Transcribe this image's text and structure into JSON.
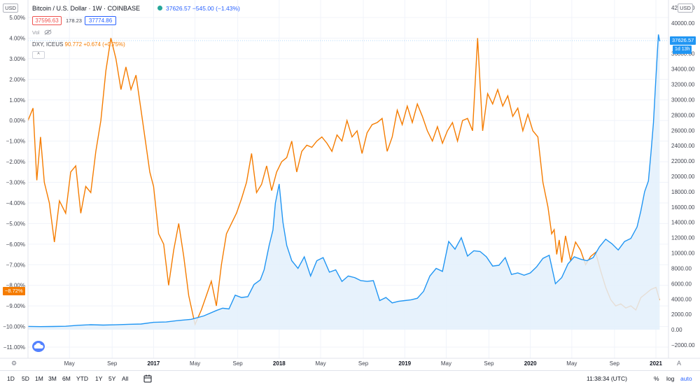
{
  "header": {
    "usd_left": "USD",
    "usd_right": "USD",
    "title": "Bitcoin / U.S. Dollar · 1W · COINBASE",
    "title_price": "37626.57  −545.00 (−1.43%)",
    "bid": "37596.63",
    "spread": "178.23",
    "ask": "37774.86",
    "vol_label": "Vol",
    "dxy_legend_name": "DXY, ICEUS",
    "dxy_legend_values": "90.772  +0.674 (+0.75%)",
    "collapse_label": "^"
  },
  "tags": {
    "btc_price": "37626.57",
    "countdown": "1d 13h",
    "dxy_pct": "−8.72%"
  },
  "bottom_bar": {
    "timeframes": [
      "1D",
      "5D",
      "1M",
      "3M",
      "6M",
      "YTD",
      "1Y",
      "5Y",
      "All"
    ],
    "clock": "11:38:34 (UTC)",
    "percent": "%",
    "log": "log",
    "auto": "auto"
  },
  "colors": {
    "btc_line": "#2196f3",
    "btc_fill": "#e3f0fb",
    "dxy_line": "#f57c00",
    "grid": "#f0f3fa",
    "bid_red": "#ef5350"
  },
  "chart_data": {
    "type": "line",
    "left_axis": {
      "unit": "percent",
      "ylim": [
        -11,
        5
      ],
      "ticks": [
        "5.00%",
        "4.00%",
        "3.00%",
        "2.00%",
        "1.00%",
        "0.00%",
        "−1.00%",
        "−2.00%",
        "−3.00%",
        "−4.00%",
        "−5.00%",
        "−6.00%",
        "−7.00%",
        "−8.00%",
        "−9.00%",
        "−10.00%",
        "−11.00%"
      ]
    },
    "right_axis": {
      "unit": "USD",
      "ylim": [
        -2000,
        42000
      ],
      "ticks": [
        "42000.00",
        "40000.00",
        "38000.00",
        "36000.00",
        "34000.00",
        "32000.00",
        "30000.00",
        "28000.00",
        "26000.00",
        "24000.00",
        "22000.00",
        "20000.00",
        "18000.00",
        "16000.00",
        "14000.00",
        "12000.00",
        "10000.00",
        "8000.00",
        "6000.00",
        "4000.00",
        "2000.00",
        "0.00",
        "−2000.00"
      ]
    },
    "x_axis": {
      "labels": [
        "May",
        "Sep",
        "2017",
        "May",
        "Sep",
        "2018",
        "May",
        "Sep",
        "2019",
        "May",
        "Sep",
        "2020",
        "May",
        "Sep",
        "2021"
      ],
      "label_dates": [
        2016.33,
        2016.67,
        2017.0,
        2017.33,
        2017.67,
        2018.0,
        2018.33,
        2018.67,
        2019.0,
        2019.33,
        2019.67,
        2020.0,
        2020.33,
        2020.67,
        2021.0
      ],
      "year_labels": [
        "2017",
        "2018",
        "2019",
        "2020",
        "2021"
      ],
      "range": [
        2016.0,
        2021.1
      ]
    },
    "grid": true,
    "series": [
      {
        "name": "DXY, ICEUS",
        "axis": "left",
        "color": "#f57c00",
        "x": [
          2016.0,
          2016.04,
          2016.07,
          2016.1,
          2016.13,
          2016.17,
          2016.21,
          2016.25,
          2016.3,
          2016.34,
          2016.38,
          2016.42,
          2016.46,
          2016.5,
          2016.54,
          2016.58,
          2016.62,
          2016.66,
          2016.7,
          2016.74,
          2016.78,
          2016.82,
          2016.86,
          2016.9,
          2016.94,
          2016.97,
          2017.0,
          2017.04,
          2017.08,
          2017.12,
          2017.16,
          2017.2,
          2017.24,
          2017.28,
          2017.33,
          2017.38,
          2017.42,
          2017.46,
          2017.5,
          2017.54,
          2017.58,
          2017.62,
          2017.66,
          2017.7,
          2017.74,
          2017.78,
          2017.82,
          2017.86,
          2017.9,
          2017.94,
          2017.98,
          2018.02,
          2018.06,
          2018.1,
          2018.14,
          2018.18,
          2018.22,
          2018.26,
          2018.3,
          2018.34,
          2018.38,
          2018.42,
          2018.46,
          2018.5,
          2018.54,
          2018.58,
          2018.62,
          2018.66,
          2018.7,
          2018.74,
          2018.78,
          2018.82,
          2018.86,
          2018.9,
          2018.94,
          2018.98,
          2019.02,
          2019.06,
          2019.1,
          2019.14,
          2019.18,
          2019.22,
          2019.26,
          2019.3,
          2019.34,
          2019.38,
          2019.42,
          2019.46,
          2019.5,
          2019.54,
          2019.58,
          2019.62,
          2019.66,
          2019.7,
          2019.74,
          2019.78,
          2019.82,
          2019.86,
          2019.9,
          2019.94,
          2019.98,
          2020.02,
          2020.06,
          2020.1,
          2020.14,
          2020.17,
          2020.19,
          2020.21,
          2020.23,
          2020.25,
          2020.28,
          2020.32,
          2020.36,
          2020.4,
          2020.44,
          2020.48,
          2020.52,
          2020.56,
          2020.6,
          2020.64,
          2020.68,
          2020.72,
          2020.76,
          2020.8,
          2020.84,
          2020.88,
          2020.92,
          2020.96,
          2021.0,
          2021.03
        ],
        "y": [
          0.0,
          0.6,
          -2.9,
          -0.8,
          -3.0,
          -4.0,
          -5.9,
          -3.9,
          -4.5,
          -2.5,
          -2.2,
          -4.5,
          -3.2,
          -3.5,
          -1.5,
          0.0,
          2.4,
          4.0,
          3.0,
          1.5,
          2.6,
          1.5,
          2.2,
          0.5,
          -1.2,
          -2.5,
          -3.2,
          -5.5,
          -6.0,
          -8.0,
          -6.3,
          -5.0,
          -6.6,
          -8.5,
          -9.9,
          -9.2,
          -8.5,
          -7.8,
          -9.0,
          -7.0,
          -5.5,
          -5.0,
          -4.5,
          -3.8,
          -3.0,
          -1.6,
          -3.5,
          -3.1,
          -2.2,
          -3.4,
          -2.5,
          -2.0,
          -1.8,
          -1.0,
          -2.5,
          -1.5,
          -1.2,
          -1.3,
          -1.0,
          -0.8,
          -1.1,
          -1.5,
          -0.7,
          -1.0,
          0.0,
          -0.8,
          -0.5,
          -1.6,
          -0.6,
          -0.2,
          -0.1,
          0.1,
          -1.5,
          -0.8,
          0.5,
          -0.2,
          0.7,
          -0.1,
          0.8,
          0.2,
          -0.5,
          -1.0,
          -0.3,
          -1.1,
          -0.5,
          -0.1,
          -1.0,
          0.0,
          0.1,
          -0.5,
          4.0,
          -0.5,
          1.3,
          0.8,
          1.5,
          0.7,
          1.2,
          0.2,
          0.6,
          -0.5,
          0.3,
          -0.5,
          -0.8,
          -3.0,
          -4.2,
          -5.5,
          -5.3,
          -6.5,
          -5.8,
          -6.9,
          -5.6,
          -6.8,
          -5.9,
          -6.3,
          -7.0,
          -6.6,
          -6.4,
          -7.3,
          -8.1,
          -8.7,
          -9.0,
          -8.9,
          -9.1,
          -9.0,
          -9.2,
          -8.6,
          -8.4,
          -8.2,
          -8.1,
          -8.72
        ]
      },
      {
        "name": "Bitcoin / U.S. Dollar · 1W · COINBASE",
        "axis": "right",
        "color": "#2196f3",
        "x": [
          2016.0,
          2016.1,
          2016.2,
          2016.3,
          2016.4,
          2016.5,
          2016.6,
          2016.7,
          2016.8,
          2016.9,
          2017.0,
          2017.1,
          2017.2,
          2017.3,
          2017.4,
          2017.5,
          2017.55,
          2017.6,
          2017.65,
          2017.7,
          2017.75,
          2017.8,
          2017.85,
          2017.88,
          2017.92,
          2017.95,
          2017.97,
          2018.0,
          2018.03,
          2018.06,
          2018.1,
          2018.15,
          2018.2,
          2018.25,
          2018.3,
          2018.35,
          2018.4,
          2018.45,
          2018.5,
          2018.55,
          2018.6,
          2018.65,
          2018.7,
          2018.75,
          2018.8,
          2018.85,
          2018.9,
          2018.95,
          2019.0,
          2019.05,
          2019.1,
          2019.15,
          2019.2,
          2019.25,
          2019.3,
          2019.35,
          2019.4,
          2019.45,
          2019.5,
          2019.55,
          2019.6,
          2019.65,
          2019.7,
          2019.75,
          2019.8,
          2019.85,
          2019.9,
          2019.95,
          2020.0,
          2020.05,
          2020.1,
          2020.15,
          2020.2,
          2020.25,
          2020.3,
          2020.35,
          2020.4,
          2020.45,
          2020.5,
          2020.55,
          2020.6,
          2020.65,
          2020.7,
          2020.75,
          2020.8,
          2020.85,
          2020.88,
          2020.91,
          2020.94,
          2020.96,
          2020.98,
          2021.0,
          2021.02,
          2021.03
        ],
        "y": [
          430,
          400,
          420,
          450,
          570,
          650,
          600,
          640,
          700,
          740,
          960,
          1000,
          1200,
          1350,
          1800,
          2500,
          2800,
          2700,
          4500,
          4200,
          4300,
          5900,
          6500,
          7800,
          11000,
          13000,
          16500,
          19000,
          14000,
          11000,
          9000,
          8000,
          9500,
          7000,
          9000,
          9400,
          7500,
          7800,
          6300,
          7000,
          6800,
          6400,
          6300,
          6400,
          3800,
          4200,
          3500,
          3700,
          3800,
          3900,
          4100,
          5000,
          7000,
          8000,
          7600,
          11500,
          10500,
          12000,
          9600,
          10300,
          10200,
          9500,
          8300,
          8400,
          9400,
          7200,
          7400,
          7100,
          7400,
          8200,
          9300,
          9700,
          6000,
          6800,
          8600,
          9500,
          9200,
          9000,
          9400,
          10800,
          11800,
          11200,
          10400,
          11500,
          11900,
          13400,
          15500,
          18000,
          19400,
          23000,
          27000,
          33000,
          38500,
          37626
        ]
      }
    ]
  }
}
